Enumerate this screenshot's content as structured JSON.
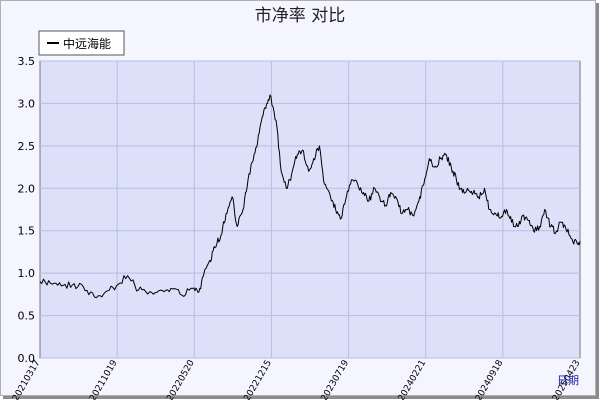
{
  "chart_data": {
    "type": "line",
    "title": "市净率  对比",
    "xlabel": "日期",
    "ylabel": "",
    "ylim": [
      0,
      3.5
    ],
    "yticks": [
      "0.0",
      "0.5",
      "1.0",
      "1.5",
      "2.0",
      "2.5",
      "3.0",
      "3.5"
    ],
    "xticks": [
      "20210317",
      "20211019",
      "20220520",
      "20221215",
      "20230719",
      "20240221",
      "20240918",
      "20250423"
    ],
    "grid": true,
    "legend_position": "top-left",
    "colors": {
      "plot_bg": "#dce0f8",
      "grid": "#b7bde6",
      "line": "#000000"
    },
    "series": [
      {
        "name": "中远海能",
        "x": [
          "2021-03-17",
          "2021-04-15",
          "2021-05-15",
          "2021-06-15",
          "2021-07-15",
          "2021-08-15",
          "2021-09-15",
          "2021-10-15",
          "2021-11-15",
          "2021-12-15",
          "2022-01-15",
          "2022-02-15",
          "2022-03-15",
          "2022-04-15",
          "2022-05-15",
          "2022-06-01",
          "2022-06-15",
          "2022-07-01",
          "2022-07-15",
          "2022-08-01",
          "2022-08-15",
          "2022-09-01",
          "2022-09-15",
          "2022-10-01",
          "2022-10-15",
          "2022-11-01",
          "2022-11-15",
          "2022-12-01",
          "2022-12-15",
          "2023-01-01",
          "2023-01-15",
          "2023-02-01",
          "2023-02-15",
          "2023-03-01",
          "2023-03-15",
          "2023-04-01",
          "2023-04-15",
          "2023-05-01",
          "2023-05-15",
          "2023-06-01",
          "2023-06-15",
          "2023-07-01",
          "2023-07-15",
          "2023-08-01",
          "2023-08-15",
          "2023-09-01",
          "2023-09-15",
          "2023-10-01",
          "2023-10-15",
          "2023-11-01",
          "2023-11-15",
          "2023-12-01",
          "2023-12-15",
          "2024-01-01",
          "2024-01-15",
          "2024-02-01",
          "2024-02-15",
          "2024-03-01",
          "2024-03-15",
          "2024-04-01",
          "2024-04-15",
          "2024-05-01",
          "2024-05-15",
          "2024-06-01",
          "2024-06-15",
          "2024-07-01",
          "2024-07-15",
          "2024-08-01",
          "2024-08-15",
          "2024-09-01",
          "2024-09-15",
          "2024-10-01",
          "2024-10-15",
          "2024-11-01",
          "2024-11-15",
          "2024-12-01",
          "2024-12-15",
          "2025-01-01",
          "2025-01-15",
          "2025-02-01",
          "2025-02-15",
          "2025-03-01",
          "2025-03-15",
          "2025-04-01",
          "2025-04-15",
          "2025-04-23"
        ],
        "values": [
          0.9,
          0.88,
          0.85,
          0.86,
          0.84,
          0.72,
          0.78,
          0.85,
          0.97,
          0.8,
          0.78,
          0.8,
          0.82,
          0.74,
          0.82,
          0.78,
          1.0,
          1.15,
          1.3,
          1.45,
          1.7,
          1.9,
          1.55,
          1.75,
          2.1,
          2.4,
          2.65,
          2.95,
          3.1,
          2.8,
          2.2,
          2.0,
          2.2,
          2.4,
          2.45,
          2.2,
          2.35,
          2.5,
          2.05,
          1.9,
          1.75,
          1.65,
          1.9,
          2.1,
          2.05,
          1.95,
          1.85,
          2.0,
          1.9,
          1.8,
          1.95,
          1.88,
          1.7,
          1.75,
          1.68,
          1.85,
          2.05,
          2.35,
          2.25,
          2.35,
          2.4,
          2.25,
          2.1,
          1.95,
          2.0,
          1.95,
          1.9,
          2.0,
          1.75,
          1.7,
          1.65,
          1.75,
          1.6,
          1.55,
          1.68,
          1.62,
          1.5,
          1.55,
          1.75,
          1.55,
          1.48,
          1.6,
          1.52,
          1.4,
          1.35,
          1.38
        ]
      }
    ]
  }
}
